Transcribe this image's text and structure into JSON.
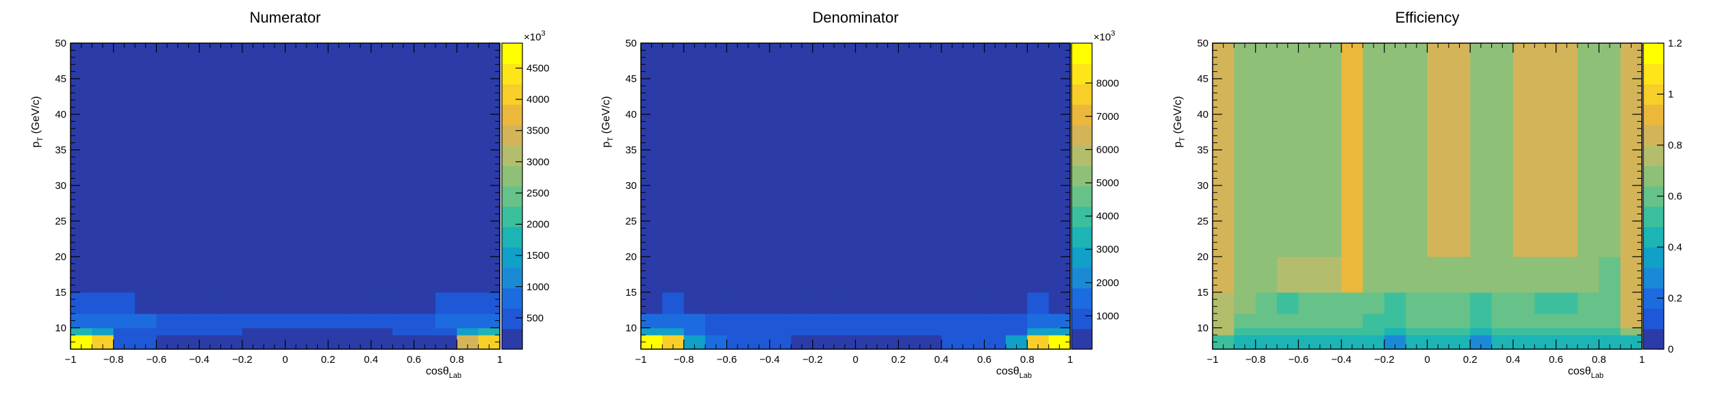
{
  "palette": [
    "#2b3ca8",
    "#1f58d6",
    "#1c6ce0",
    "#1a8ad6",
    "#11a0c8",
    "#1cb4b4",
    "#3cbf9c",
    "#66c288",
    "#8ec078",
    "#b4bd6c",
    "#d4b458",
    "#ecb83c",
    "#f7cf28",
    "#fde51a",
    "#ffff00"
  ],
  "chart_data": [
    {
      "type": "heatmap",
      "title": "Numerator",
      "xlabel": "cosθ",
      "xlabel_sub": "Lab",
      "ylabel": "p",
      "ylabel_sub": "T",
      "ylabel_unit": "(GeV/c)",
      "xlim": [
        -1,
        1
      ],
      "ylim": [
        7,
        50
      ],
      "x_ticks": [
        "−1",
        "−0.8",
        "−0.6",
        "−0.4",
        "−0.2",
        "0",
        "0.2",
        "0.4",
        "0.6",
        "0.8",
        "1"
      ],
      "y_ticks": [
        "10",
        "15",
        "20",
        "25",
        "30",
        "35",
        "40",
        "45",
        "50"
      ],
      "x_edges": [
        -1,
        -0.9,
        -0.8,
        -0.7,
        -0.6,
        -0.5,
        -0.4,
        -0.3,
        -0.2,
        -0.1,
        0,
        0.1,
        0.2,
        0.3,
        0.4,
        0.5,
        0.6,
        0.7,
        0.8,
        0.9,
        1
      ],
      "y_edges": [
        7,
        9,
        10,
        12,
        15,
        50
      ],
      "values": [
        [
          4700,
          4000,
          500,
          350,
          300,
          300,
          250,
          200,
          50,
          100,
          100,
          100,
          50,
          50,
          50,
          200,
          250,
          300,
          3500,
          4100
        ],
        [
          1700,
          1500,
          600,
          600,
          500,
          500,
          400,
          350,
          300,
          300,
          300,
          300,
          300,
          300,
          300,
          350,
          400,
          600,
          1500,
          1700
        ],
        [
          900,
          900,
          800,
          700,
          600,
          550,
          500,
          450,
          400,
          400,
          400,
          400,
          400,
          400,
          450,
          500,
          600,
          800,
          900,
          900
        ],
        [
          600,
          600,
          600,
          0,
          0,
          0,
          0,
          0,
          0,
          0,
          0,
          0,
          0,
          0,
          0,
          0,
          0,
          600,
          600,
          600
        ],
        [
          0,
          0,
          0,
          0,
          0,
          0,
          0,
          0,
          0,
          0,
          0,
          0,
          0,
          0,
          0,
          0,
          0,
          0,
          0,
          0
        ]
      ],
      "zmax": 4900,
      "z_ticks": [
        "500",
        "1000",
        "1500",
        "2000",
        "2500",
        "3000",
        "3500",
        "4000",
        "4500"
      ],
      "z_tick_values": [
        500,
        1000,
        1500,
        2000,
        2500,
        3000,
        3500,
        4000,
        4500
      ],
      "z_multiplier": "×10",
      "z_exponent": "3"
    },
    {
      "type": "heatmap",
      "title": "Denominator",
      "xlabel": "cosθ",
      "xlabel_sub": "Lab",
      "ylabel": "p",
      "ylabel_sub": "T",
      "ylabel_unit": "(GeV/c)",
      "xlim": [
        -1,
        1
      ],
      "ylim": [
        7,
        50
      ],
      "x_ticks": [
        "−1",
        "−0.8",
        "−0.6",
        "−0.4",
        "−0.2",
        "0",
        "0.2",
        "0.4",
        "0.6",
        "0.8",
        "1"
      ],
      "y_ticks": [
        "10",
        "15",
        "20",
        "25",
        "30",
        "35",
        "40",
        "45",
        "50"
      ],
      "x_edges": [
        -1,
        -0.9,
        -0.8,
        -0.7,
        -0.6,
        -0.5,
        -0.4,
        -0.3,
        -0.2,
        -0.1,
        0,
        0.1,
        0.2,
        0.3,
        0.4,
        0.5,
        0.6,
        0.7,
        0.8,
        0.9,
        1
      ],
      "y_edges": [
        7,
        9,
        10,
        12,
        15,
        50
      ],
      "values": [
        [
          8700,
          7500,
          3000,
          1500,
          1000,
          1000,
          800,
          600,
          600,
          600,
          600,
          600,
          600,
          600,
          700,
          800,
          1000,
          2700,
          7800,
          9000
        ],
        [
          3000,
          2500,
          1500,
          1200,
          1000,
          1000,
          900,
          800,
          800,
          800,
          800,
          800,
          800,
          800,
          800,
          900,
          1000,
          1200,
          2500,
          3000
        ],
        [
          1500,
          1400,
          1300,
          1100,
          1000,
          900,
          900,
          800,
          800,
          800,
          800,
          800,
          800,
          800,
          800,
          900,
          1000,
          1200,
          1400,
          1500
        ],
        [
          0,
          900,
          0,
          0,
          0,
          0,
          0,
          0,
          0,
          0,
          0,
          0,
          0,
          0,
          0,
          0,
          0,
          0,
          900,
          0
        ],
        [
          0,
          0,
          0,
          0,
          0,
          0,
          0,
          0,
          0,
          0,
          0,
          0,
          0,
          0,
          0,
          0,
          0,
          0,
          0,
          0
        ]
      ],
      "zmax": 9200,
      "z_ticks": [
        "1000",
        "2000",
        "3000",
        "4000",
        "5000",
        "6000",
        "7000",
        "8000"
      ],
      "z_tick_values": [
        1000,
        2000,
        3000,
        4000,
        5000,
        6000,
        7000,
        8000
      ],
      "z_multiplier": "×10",
      "z_exponent": "3"
    },
    {
      "type": "heatmap",
      "title": "Efficiency",
      "xlabel": "cosθ",
      "xlabel_sub": "Lab",
      "ylabel": "p",
      "ylabel_sub": "T",
      "ylabel_unit": "(GeV/c)",
      "xlim": [
        -1,
        1
      ],
      "ylim": [
        7,
        50
      ],
      "x_ticks": [
        "−1",
        "−0.8",
        "−0.6",
        "−0.4",
        "−0.2",
        "0",
        "0.2",
        "0.4",
        "0.6",
        "0.8",
        "1"
      ],
      "y_ticks": [
        "10",
        "15",
        "20",
        "25",
        "30",
        "35",
        "40",
        "45",
        "50"
      ],
      "x_edges": [
        -1,
        -0.9,
        -0.8,
        -0.7,
        -0.6,
        -0.5,
        -0.4,
        -0.3,
        -0.2,
        -0.1,
        0,
        0.1,
        0.2,
        0.3,
        0.4,
        0.5,
        0.6,
        0.7,
        0.8,
        0.9,
        1
      ],
      "y_edges": [
        7,
        9,
        10,
        12,
        15,
        20,
        50
      ],
      "values": [
        [
          0.5,
          0.45,
          0.45,
          0.45,
          0.45,
          0.4,
          0.4,
          0.4,
          0.25,
          0.4,
          0.4,
          0.4,
          0.25,
          0.4,
          0.4,
          0.4,
          0.4,
          0.4,
          0.4,
          0.45
        ],
        [
          0.75,
          0.5,
          0.5,
          0.5,
          0.55,
          0.55,
          0.5,
          0.5,
          0.4,
          0.5,
          0.5,
          0.5,
          0.45,
          0.5,
          0.5,
          0.5,
          0.5,
          0.5,
          0.5,
          0.65
        ],
        [
          0.75,
          0.6,
          0.6,
          0.6,
          0.6,
          0.6,
          0.6,
          0.55,
          0.55,
          0.6,
          0.6,
          0.6,
          0.55,
          0.6,
          0.6,
          0.6,
          0.6,
          0.6,
          0.6,
          0.8
        ],
        [
          0.75,
          0.7,
          0.6,
          0.55,
          0.6,
          0.6,
          0.6,
          0.6,
          0.55,
          0.6,
          0.6,
          0.6,
          0.55,
          0.6,
          0.6,
          0.55,
          0.55,
          0.6,
          0.6,
          0.8
        ],
        [
          0.8,
          0.7,
          0.7,
          0.75,
          0.75,
          0.75,
          0.95,
          0.7,
          0.65,
          0.65,
          0.65,
          0.65,
          0.65,
          0.65,
          0.65,
          0.65,
          0.65,
          0.65,
          0.6,
          0.85
        ],
        [
          0.85,
          0.7,
          0.7,
          0.7,
          0.7,
          0.7,
          0.95,
          0.7,
          0.7,
          0.7,
          0.8,
          0.8,
          0.7,
          0.7,
          0.8,
          0.8,
          0.8,
          0.7,
          0.7,
          0.85
        ]
      ],
      "zmax": 1.2,
      "z_ticks": [
        "0",
        "0.2",
        "0.4",
        "0.6",
        "0.8",
        "1",
        "1.2"
      ],
      "z_tick_values": [
        0,
        0.2,
        0.4,
        0.6,
        0.8,
        1,
        1.2
      ],
      "z_multiplier": "",
      "z_exponent": ""
    }
  ]
}
